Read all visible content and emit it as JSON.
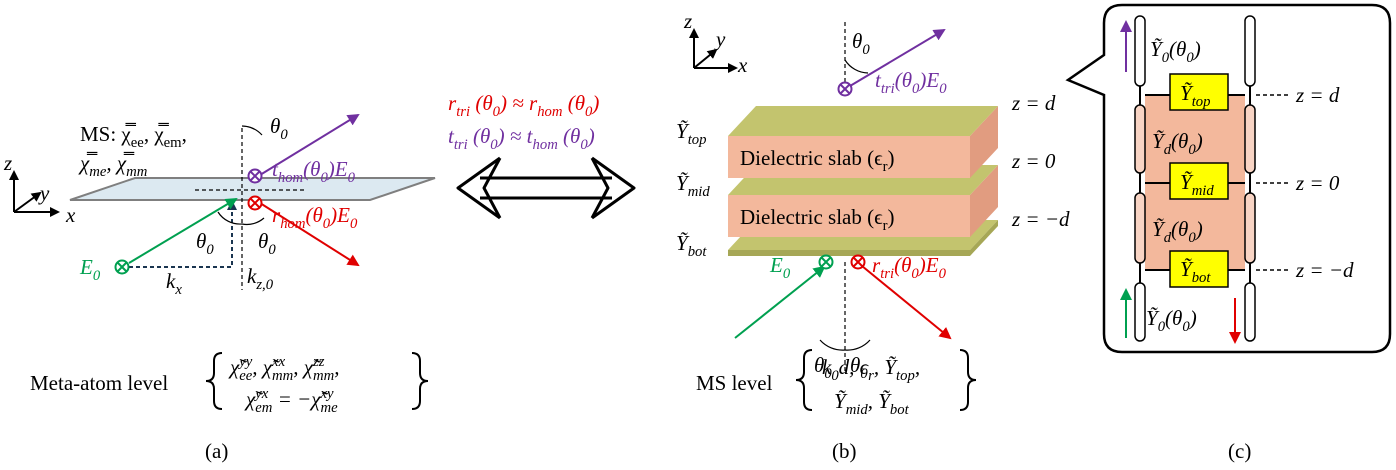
{
  "panel_a": {
    "axes": [
      "z",
      "y",
      "x"
    ],
    "ms_line1": "MS: χ̿_{ee}, χ̿_{em},",
    "ms_line2": "χ̿_{me}, χ̿_{mm}",
    "theta_labels": [
      "θ_{0}",
      "θ_{0}",
      "θ_{0}"
    ],
    "transmitted": "t_{hom}(θ_{0})E_{0}",
    "reflected": "r_{hom}(θ_{0})E_{0}",
    "incident": "E_{0}",
    "kx": "k_{x}",
    "kz": "k_{z,0}",
    "level_label": "Meta-atom level",
    "level_terms": [
      "χ̃^{yy}_{ee}, χ̃^{xx}_{mm}, χ̃^{zz}_{mm},",
      "χ̃^{yx}_{em} = −χ̃^{xy}_{me}"
    ],
    "caption": "(a)"
  },
  "equivalence": [
    "r_{tri} (θ_{0}) ≈ r_{hom} (θ_{0})",
    "t_{tri} (θ_{0}) ≈ t_{hom} (θ_{0})"
  ],
  "panel_b": {
    "axes": [
      "z",
      "y",
      "x"
    ],
    "sheet_labels": [
      "Ỹ_{top}",
      "Ỹ_{mid}",
      "Ỹ_{bot}"
    ],
    "slab_labels": [
      "Dielectric slab (ϵ_{r})",
      "Dielectric slab (ϵ_{r})"
    ],
    "z_labels": [
      "z = d",
      "z = 0",
      "z = −d"
    ],
    "theta_labels": [
      "θ_{0}",
      "θ_{0}",
      "θ_{0}"
    ],
    "transmitted": "t_{tri}(θ_{0})E_{0}",
    "reflected": "r_{tri}(θ_{0})E_{0}",
    "incident": "E_{0}",
    "level_label": "MS level",
    "level_terms": [
      "k_{0}d, ϵ_{r}, Ỹ_{top},",
      "Ỹ_{mid}, Ỹ_{bot}"
    ],
    "caption": "(b)"
  },
  "panel_c": {
    "admittances": [
      "Ỹ_{top}",
      "Ỹ_{mid}",
      "Ỹ_{bot}"
    ],
    "line_admittances": [
      "Ỹ_{d}(θ_{0})",
      "Ỹ_{d}(θ_{0})"
    ],
    "port_admittances": [
      "Ỹ_{0}(θ_{0})",
      "Ỹ_{0}(θ_{0})"
    ],
    "z_labels": [
      "z = d",
      "z = 0",
      "z = −d"
    ],
    "caption": "(c)"
  }
}
